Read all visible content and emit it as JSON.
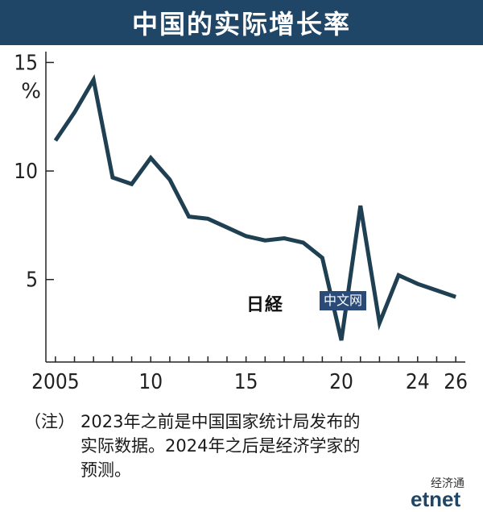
{
  "title": "中国的实际增长率",
  "y_unit": "%",
  "note": {
    "prefix": "（注）",
    "line1": "2023年之前是中国国家统计局发布的",
    "line2": "实际数据。2024年之后是经济学家的",
    "line3": "预测。"
  },
  "watermark": {
    "logo_text": "日経",
    "box_text": "中文网"
  },
  "source": {
    "top": "经济通",
    "logo": "etnet"
  },
  "chart_data": {
    "type": "line",
    "title": "中国的实际增长率",
    "xlabel": "",
    "ylabel": "%",
    "xlim": [
      2004.5,
      26.5
    ],
    "ylim": [
      1.2,
      15.5
    ],
    "x_ticks": [
      2005,
      2010,
      2015,
      2020,
      2024,
      2026
    ],
    "x_tick_labels": [
      "2005",
      "10",
      "15",
      "20",
      "24",
      "26"
    ],
    "y_ticks": [
      5,
      10,
      15
    ],
    "y_tick_labels": [
      "5",
      "10",
      "15"
    ],
    "grid": false,
    "line_color": "#1f3f52",
    "series": [
      {
        "x": [
          2005,
          2006,
          2007,
          2008,
          2009,
          2010,
          2011,
          2012,
          2013,
          2014,
          2015,
          2016,
          2017,
          2018,
          2019,
          2020,
          2021,
          2022,
          2023,
          2024,
          2025,
          2026
        ],
        "values": [
          11.4,
          12.7,
          14.2,
          9.7,
          9.4,
          10.6,
          9.6,
          7.9,
          7.8,
          7.4,
          7.0,
          6.8,
          6.9,
          6.7,
          6.0,
          2.2,
          8.4,
          3.0,
          5.2,
          4.8,
          4.5,
          4.2
        ]
      }
    ]
  }
}
